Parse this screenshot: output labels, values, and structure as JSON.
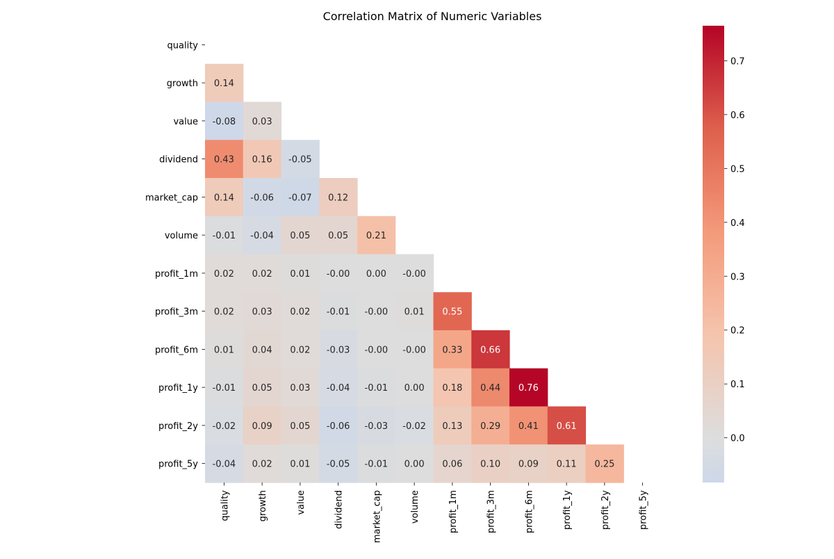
{
  "chart_data": {
    "type": "heatmap",
    "title": "Correlation Matrix of Numeric Variables",
    "mask": "upper-triangle-including-diagonal",
    "rows": [
      "quality",
      "growth",
      "value",
      "dividend",
      "market_cap",
      "volume",
      "profit_1m",
      "profit_3m",
      "profit_6m",
      "profit_1y",
      "profit_2y",
      "profit_5y"
    ],
    "cols": [
      "quality",
      "growth",
      "value",
      "dividend",
      "market_cap",
      "volume",
      "profit_1m",
      "profit_3m",
      "profit_6m",
      "profit_1y",
      "profit_2y",
      "profit_5y"
    ],
    "values": [
      [],
      [
        0.14
      ],
      [
        -0.08,
        0.03
      ],
      [
        0.43,
        0.16,
        -0.05
      ],
      [
        0.14,
        -0.06,
        -0.07,
        0.12
      ],
      [
        -0.01,
        -0.04,
        0.05,
        0.05,
        0.21
      ],
      [
        0.02,
        0.02,
        0.01,
        -0.0,
        0.0,
        -0.0
      ],
      [
        0.02,
        0.03,
        0.02,
        -0.01,
        -0.0,
        0.01,
        0.55
      ],
      [
        0.01,
        0.04,
        0.02,
        -0.03,
        -0.0,
        -0.0,
        0.33,
        0.66
      ],
      [
        -0.01,
        0.05,
        0.03,
        -0.04,
        -0.01,
        0.0,
        0.18,
        0.44,
        0.76
      ],
      [
        -0.02,
        0.09,
        0.05,
        -0.06,
        -0.03,
        -0.02,
        0.13,
        0.29,
        0.41,
        0.61
      ],
      [
        -0.04,
        0.02,
        0.01,
        -0.05,
        -0.01,
        0.0,
        0.06,
        0.1,
        0.09,
        0.11,
        0.25
      ]
    ],
    "labels": [
      [],
      [
        "0.14"
      ],
      [
        "-0.08",
        "0.03"
      ],
      [
        "0.43",
        "0.16",
        "-0.05"
      ],
      [
        "0.14",
        "-0.06",
        "-0.07",
        "0.12"
      ],
      [
        "-0.01",
        "-0.04",
        "0.05",
        "0.05",
        "0.21"
      ],
      [
        "0.02",
        "0.02",
        "0.01",
        "-0.00",
        "0.00",
        "-0.00"
      ],
      [
        "0.02",
        "0.03",
        "0.02",
        "-0.01",
        "-0.00",
        "0.01",
        "0.55"
      ],
      [
        "0.01",
        "0.04",
        "0.02",
        "-0.03",
        "-0.00",
        "-0.00",
        "0.33",
        "0.66"
      ],
      [
        "-0.01",
        "0.05",
        "0.03",
        "-0.04",
        "-0.01",
        "0.00",
        "0.18",
        "0.44",
        "0.76"
      ],
      [
        "-0.02",
        "0.09",
        "0.05",
        "-0.06",
        "-0.03",
        "-0.02",
        "0.13",
        "0.29",
        "0.41",
        "0.61"
      ],
      [
        "-0.04",
        "0.02",
        "0.01",
        "-0.05",
        "-0.01",
        "0.00",
        "0.06",
        "0.10",
        "0.09",
        "0.11",
        "0.25"
      ]
    ],
    "colorbar": {
      "colormap": "coolwarm",
      "center": 0,
      "vmin": -0.083,
      "vmax": 0.765,
      "ticks": [
        0.0,
        0.1,
        0.2,
        0.3,
        0.4,
        0.5,
        0.6,
        0.7
      ],
      "tick_labels": [
        "0.0",
        "0.1",
        "0.2",
        "0.3",
        "0.4",
        "0.5",
        "0.6",
        "0.7"
      ]
    }
  }
}
